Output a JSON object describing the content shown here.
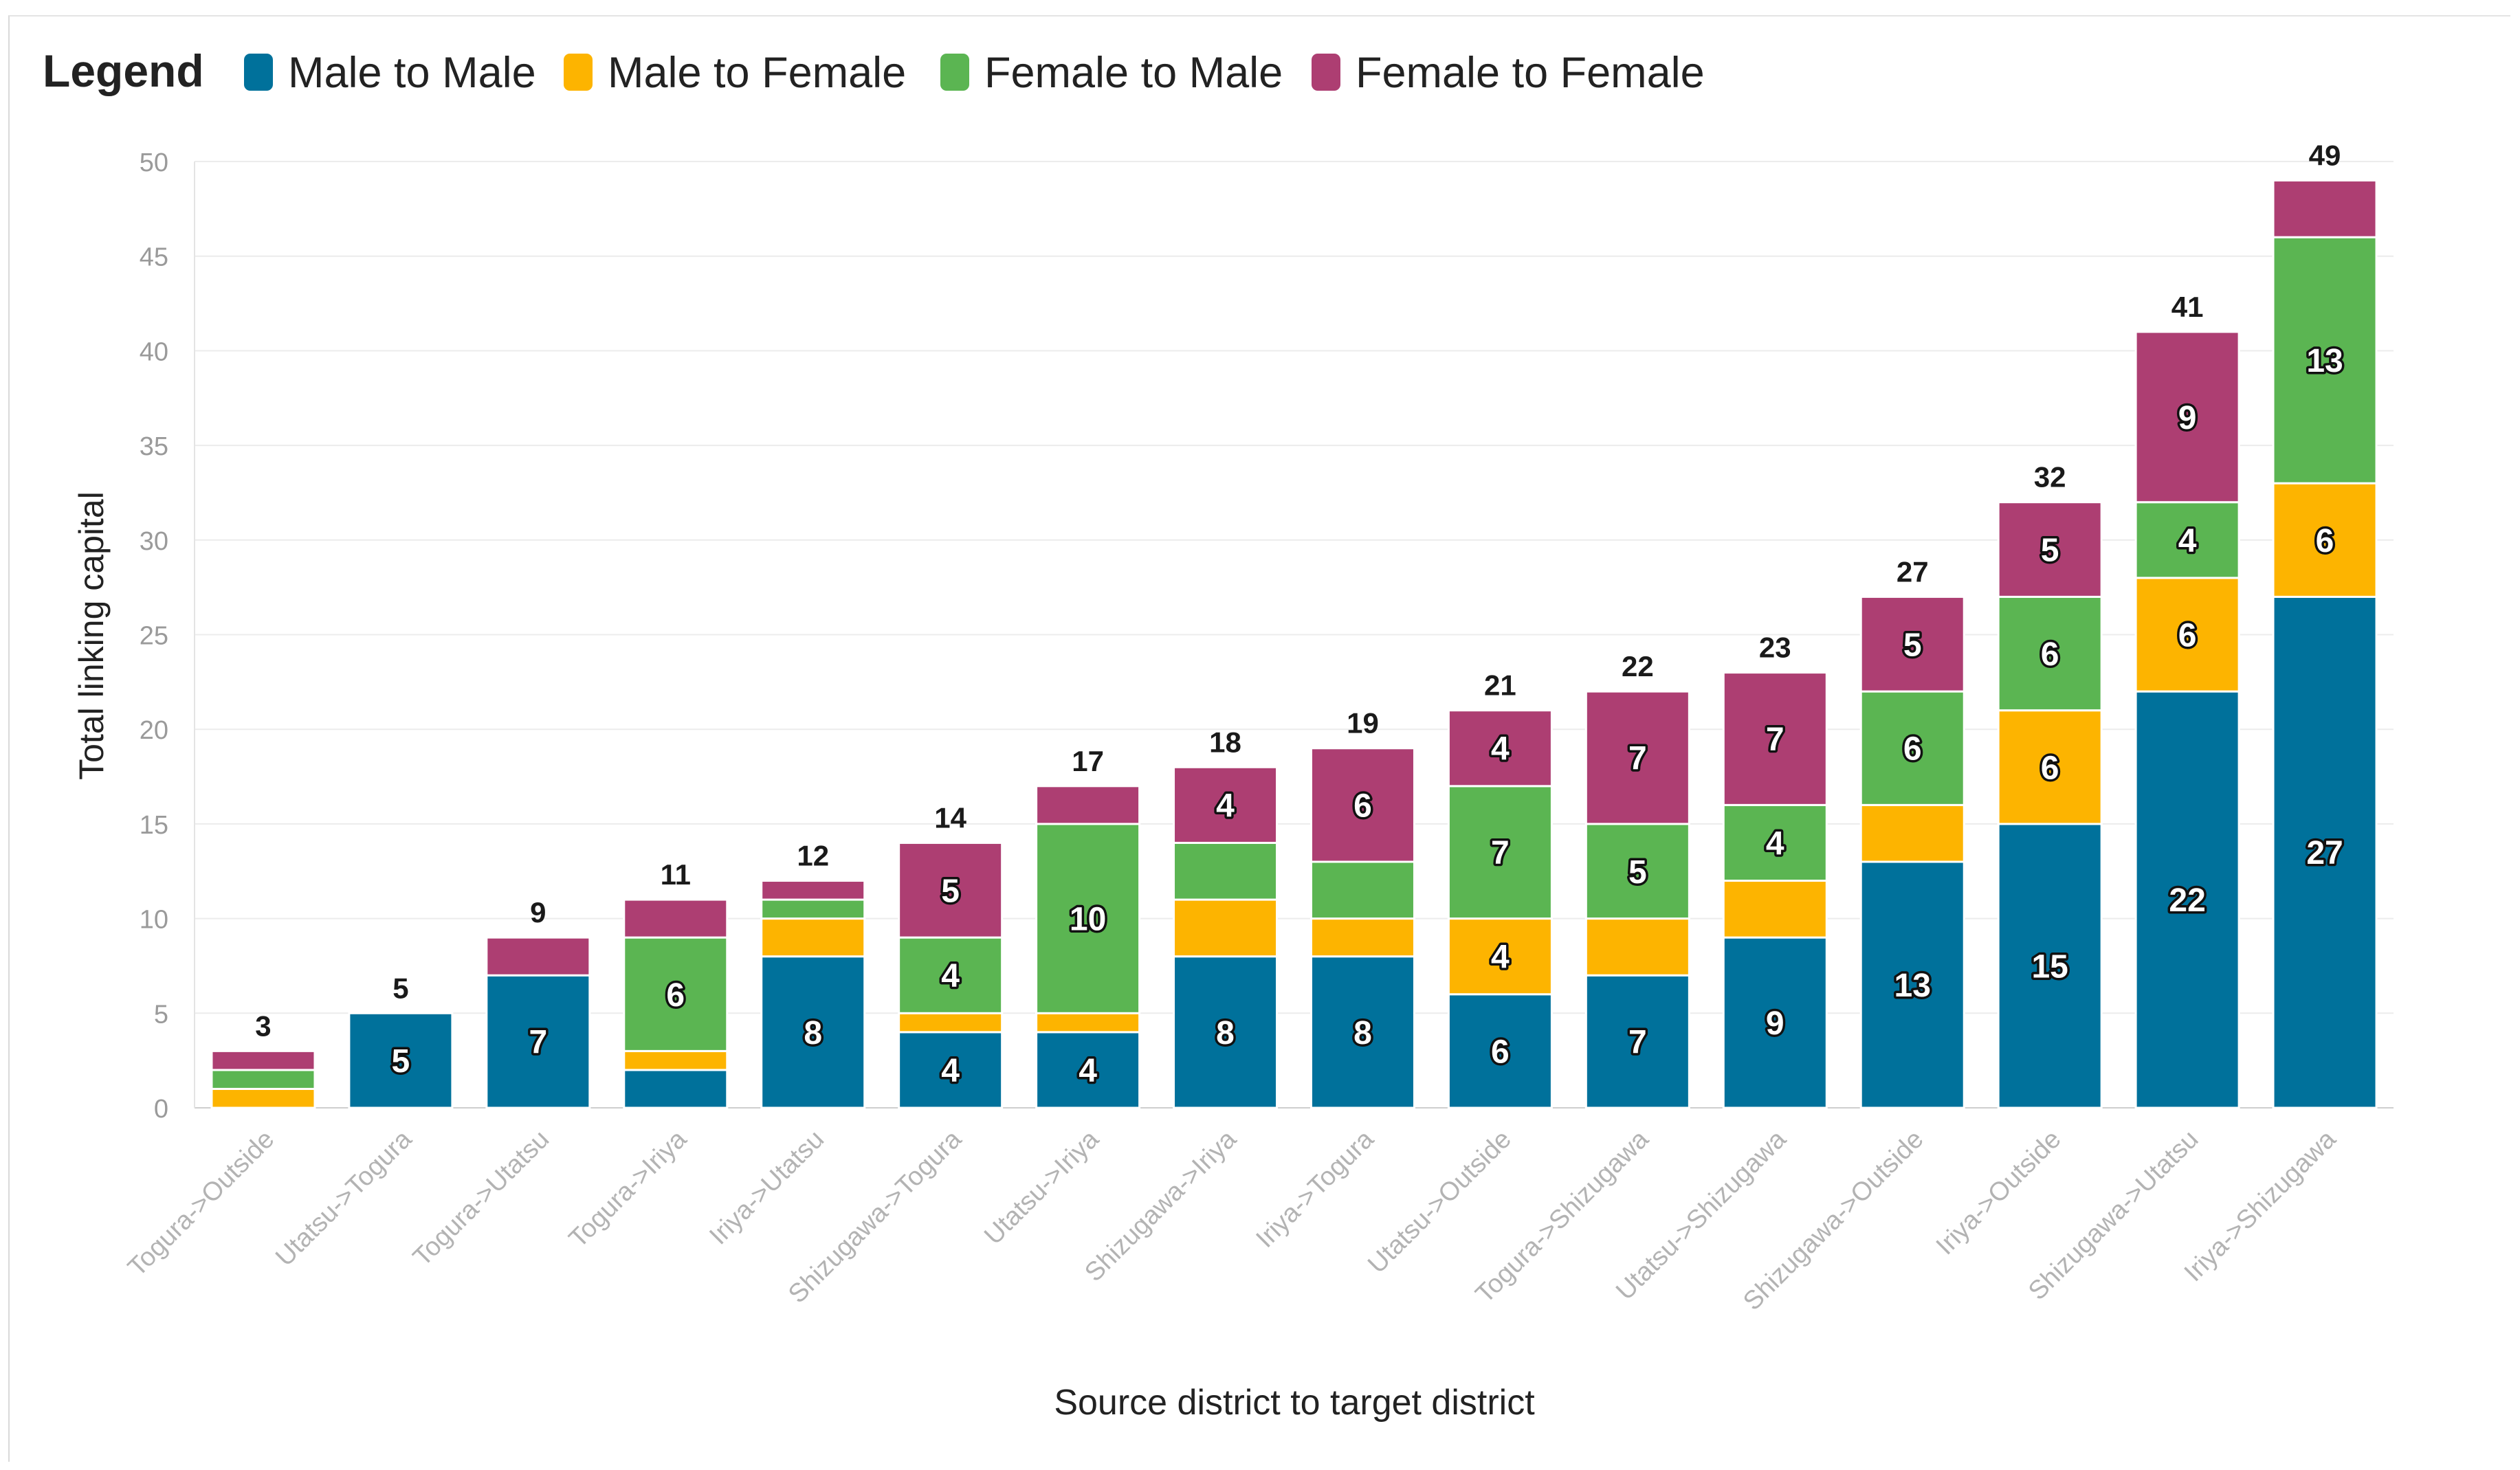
{
  "chart_data": {
    "type": "bar",
    "stacked": true,
    "title": "",
    "legend_title": "Legend",
    "legend_position": "top-left",
    "xlabel": "Source district to target district",
    "ylabel": "Total linking capital",
    "ylim": [
      0,
      50
    ],
    "yticks": [
      0,
      5,
      10,
      15,
      20,
      25,
      30,
      35,
      40,
      45,
      50
    ],
    "grid": true,
    "categories": [
      "Togura->Outside",
      "Utatsu->Togura",
      "Togura->Utatsu",
      "Togura->Iriya",
      "Iriya->Utatsu",
      "Shizugawa->Togura",
      "Utatsu->Iriya",
      "Shizugawa->Iriya",
      "Iriya->Togura",
      "Utatsu->Outside",
      "Togura->Shizugawa",
      "Utatsu->Shizugawa",
      "Shizugawa->Outside",
      "Iriya->Outside",
      "Shizugawa->Utatsu",
      "Iriya->Shizugawa"
    ],
    "series": [
      {
        "name": "Male to Male",
        "color": "#00719b",
        "values": [
          0,
          5,
          7,
          2,
          8,
          4,
          4,
          8,
          8,
          6,
          7,
          9,
          13,
          15,
          22,
          27
        ],
        "labels": [
          "",
          "5",
          "7",
          "",
          "8",
          "4",
          "4",
          "8",
          "8",
          "6",
          "7",
          "9",
          "13",
          "15",
          "22",
          "27"
        ]
      },
      {
        "name": "Male to Female",
        "color": "#fdb400",
        "values": [
          1,
          0,
          0,
          1,
          2,
          1,
          1,
          3,
          2,
          4,
          3,
          3,
          3,
          6,
          6,
          6
        ],
        "labels": [
          "",
          "",
          "",
          "",
          "",
          "",
          "",
          "",
          "",
          "4",
          "",
          "",
          "",
          "6",
          "6",
          "6"
        ]
      },
      {
        "name": "Female to Male",
        "color": "#5bb552",
        "values": [
          1,
          0,
          0,
          6,
          1,
          4,
          10,
          3,
          3,
          7,
          5,
          4,
          6,
          6,
          4,
          13
        ],
        "labels": [
          "",
          "",
          "",
          "6",
          "",
          "4",
          "10",
          "",
          "",
          "7",
          "5",
          "4",
          "6",
          "6",
          "4",
          "13"
        ]
      },
      {
        "name": "Female to Female",
        "color": "#ad3e72",
        "values": [
          1,
          0,
          2,
          2,
          1,
          5,
          2,
          4,
          6,
          4,
          7,
          7,
          5,
          5,
          9,
          3
        ],
        "labels": [
          "",
          "",
          "",
          "",
          "",
          "5",
          "",
          "4",
          "6",
          "4",
          "7",
          "7",
          "5",
          "5",
          "9",
          ""
        ]
      }
    ],
    "totals": [
      3,
      5,
      9,
      11,
      12,
      14,
      17,
      18,
      19,
      21,
      22,
      23,
      27,
      32,
      41,
      49
    ]
  }
}
